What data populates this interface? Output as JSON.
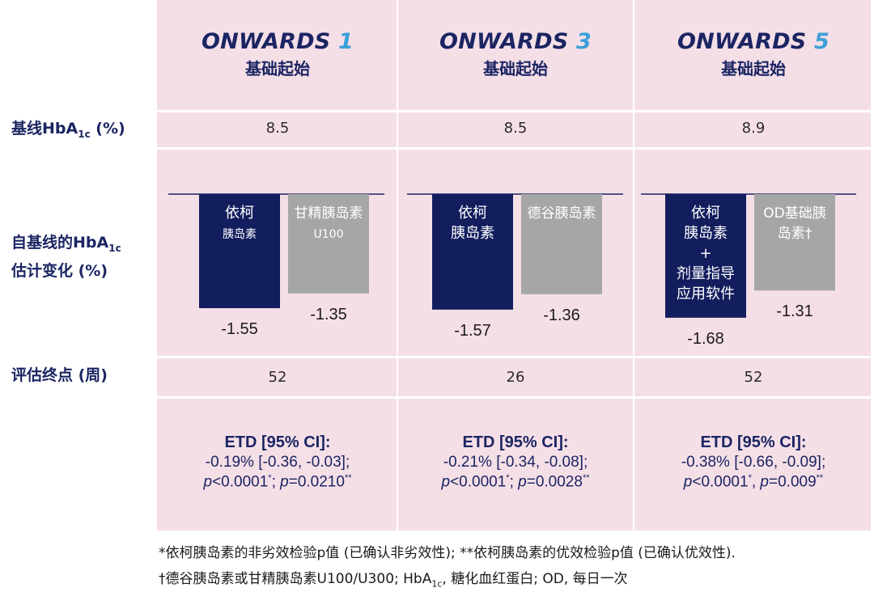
{
  "row_labels": {
    "baseline": "基线HbA",
    "baseline_sub": "1c",
    "baseline_suffix": " (%)",
    "change_line1": "自基线的HbA",
    "change_sub": "1c",
    "change_line2": "估计变化 (%)",
    "endpoint": "评估终点 (周)"
  },
  "trials": [
    {
      "name": "ONWARDS ",
      "number": "1",
      "subtitle": "基础起始",
      "baseline": "8.5",
      "endpoint": "52",
      "etd_title": "ETD [95% CI]:",
      "etd_ci": "-0.19% [-0.36, -0.03];",
      "p1_italic": "p",
      "p1_value": "<0.0001",
      "p1_mark": "*",
      "p_sep": "; ",
      "p2_italic": "p",
      "p2_value": "=0.0210",
      "p2_mark": "**"
    },
    {
      "name": "ONWARDS ",
      "number": "3",
      "subtitle": "基础起始",
      "baseline": "8.5",
      "endpoint": "26",
      "etd_title": "ETD [95% CI]:",
      "etd_ci": "-0.21% [-0.34, -0.08];",
      "p1_italic": "p",
      "p1_value": "<0.0001",
      "p1_mark": "*",
      "p_sep": "; ",
      "p2_italic": "p",
      "p2_value": "=0.0028",
      "p2_mark": "**"
    },
    {
      "name": "ONWARDS ",
      "number": "5",
      "subtitle": "基础起始",
      "baseline": "8.9",
      "endpoint": "52",
      "etd_title": "ETD [95% CI]:",
      "etd_ci": "-0.38% [-0.66, -0.09];",
      "p1_italic": "p",
      "p1_value": "<0.0001",
      "p1_mark": "*",
      "p_sep": ", ",
      "p2_italic": "p",
      "p2_value": "=0.009",
      "p2_mark": "**"
    }
  ],
  "chart_data": {
    "type": "bar",
    "ylabel": "自基线的HbA1c估计变化 (%)",
    "ylim": [
      -1.8,
      0
    ],
    "colors": {
      "treatment": "#131e5e",
      "comparator": "#a6a6a6"
    },
    "groups": [
      {
        "trial": "ONWARDS 1",
        "bars": [
          {
            "role": "treatment",
            "label_lines": [
              "依柯",
              "胰岛素"
            ],
            "value": -1.55,
            "value_label": "-1.55"
          },
          {
            "role": "comparator",
            "label_lines": [
              "甘精胰岛素",
              "U100"
            ],
            "value": -1.35,
            "value_label": "-1.35"
          }
        ]
      },
      {
        "trial": "ONWARDS 3",
        "bars": [
          {
            "role": "treatment",
            "label_lines": [
              "依柯",
              "胰岛素"
            ],
            "value": -1.57,
            "value_label": "-1.57"
          },
          {
            "role": "comparator",
            "label_lines": [
              "德谷胰岛素"
            ],
            "value": -1.36,
            "value_label": "-1.36"
          }
        ]
      },
      {
        "trial": "ONWARDS 5",
        "bars": [
          {
            "role": "treatment",
            "label_lines": [
              "依柯",
              "胰岛素",
              "+",
              "剂量指导",
              "应用软件"
            ],
            "value": -1.68,
            "value_label": "-1.68"
          },
          {
            "role": "comparator",
            "label_lines": [
              "OD基础胰",
              "岛素†"
            ],
            "value": -1.31,
            "value_label": "-1.31"
          }
        ]
      }
    ]
  },
  "footnotes": {
    "line1": "*依柯胰岛素的非劣效检验p值 (已确认非劣效性); **依柯胰岛素的优效检验p值 (已确认优效性).",
    "line2_a": "†德谷胰岛素或甘精胰岛素U100/U300; HbA",
    "line2_sub": "1c",
    "line2_b": ", 糖化血红蛋白; OD, 每日一次"
  }
}
